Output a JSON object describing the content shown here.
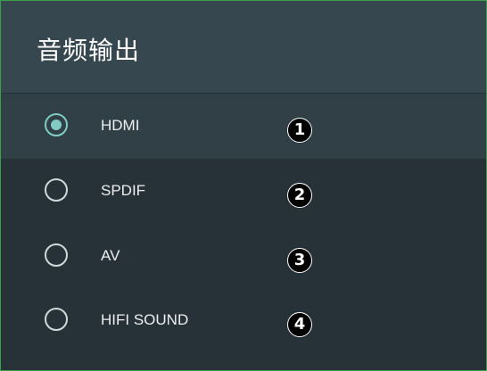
{
  "dialog": {
    "title": "音频输出",
    "options": [
      {
        "label": "HDMI",
        "badge": "1",
        "selected": true
      },
      {
        "label": "SPDIF",
        "badge": "2",
        "selected": false
      },
      {
        "label": "AV",
        "badge": "3",
        "selected": false
      },
      {
        "label": "HIFI SOUND",
        "badge": "4",
        "selected": false
      }
    ]
  },
  "colors": {
    "header_background": "#37474f",
    "dialog_background": "#263238",
    "selected_row_background": "#313f46",
    "radio_selected_accent": "#80cbc4",
    "frame_border": "#3aa04a"
  },
  "icons": {
    "radio_selected": "radio-button-checked-icon",
    "radio_unselected": "radio-button-unchecked-icon",
    "annotation_badge": "numbered-circle-badge"
  }
}
